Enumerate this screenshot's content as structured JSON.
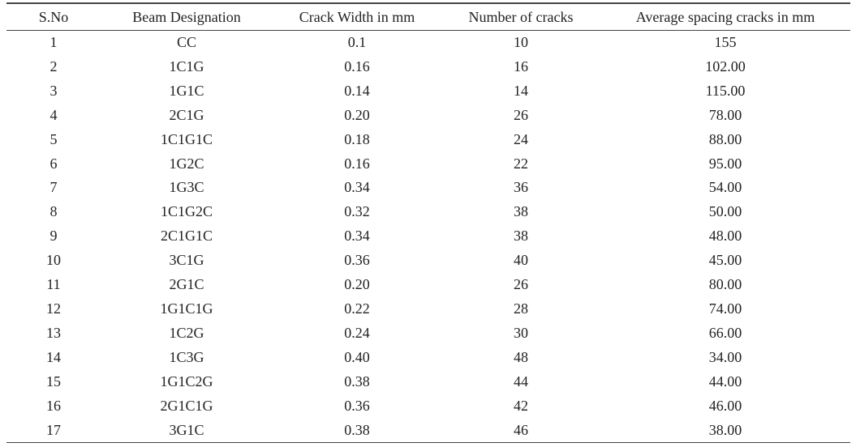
{
  "table": {
    "headers": [
      "S.No",
      "Beam Designation",
      "Crack Width in mm",
      "Number of cracks",
      "Average spacing cracks in mm"
    ],
    "rows": [
      [
        "1",
        "CC",
        "0.1",
        "10",
        "155"
      ],
      [
        "2",
        "1C1G",
        "0.16",
        "16",
        "102.00"
      ],
      [
        "3",
        "1G1C",
        "0.14",
        "14",
        "115.00"
      ],
      [
        "4",
        "2C1G",
        "0.20",
        "26",
        "78.00"
      ],
      [
        "5",
        "1C1G1C",
        "0.18",
        "24",
        "88.00"
      ],
      [
        "6",
        "1G2C",
        "0.16",
        "22",
        "95.00"
      ],
      [
        "7",
        "1G3C",
        "0.34",
        "36",
        "54.00"
      ],
      [
        "8",
        "1C1G2C",
        "0.32",
        "38",
        "50.00"
      ],
      [
        "9",
        "2C1G1C",
        "0.34",
        "38",
        "48.00"
      ],
      [
        "10",
        "3C1G",
        "0.36",
        "40",
        "45.00"
      ],
      [
        "11",
        "2G1C",
        "0.20",
        "26",
        "80.00"
      ],
      [
        "12",
        "1G1C1G",
        "0.22",
        "28",
        "74.00"
      ],
      [
        "13",
        "1C2G",
        "0.24",
        "30",
        "66.00"
      ],
      [
        "14",
        "1C3G",
        "0.40",
        "48",
        "34.00"
      ],
      [
        "15",
        "1G1C2G",
        "0.38",
        "44",
        "44.00"
      ],
      [
        "16",
        "2G1C1G",
        "0.36",
        "42",
        "46.00"
      ],
      [
        "17",
        "3G1C",
        "0.38",
        "46",
        "38.00"
      ]
    ]
  }
}
